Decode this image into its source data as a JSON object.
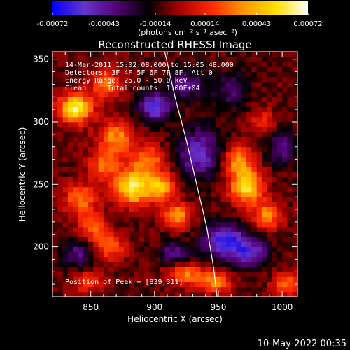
{
  "colorbar": {
    "ticks": [
      "-0.00072",
      "-0.00043",
      "-0.00014",
      "0.00014",
      "0.00043",
      "0.00072"
    ],
    "tick_values": [
      -0.00072,
      -0.00043,
      -0.00014,
      0.00014,
      0.00043,
      0.00072
    ],
    "range": [
      -0.00072,
      0.00072
    ],
    "unit_label": "(photons cm⁻² s⁻¹ asec⁻²)",
    "colors": [
      "#0000ff",
      "#6633cc",
      "#550077",
      "#000000",
      "#aa0000",
      "#ff2a00",
      "#ff9900",
      "#ffe000",
      "#ffffff"
    ]
  },
  "chart_data": {
    "type": "heatmap",
    "title": "Reconstructed RHESSI Image",
    "xlabel": "Heliocentric X (arcsec)",
    "ylabel": "Heliocentric Y (arcsec)",
    "xlim": [
      820,
      1012
    ],
    "ylim": [
      160,
      356
    ],
    "x_ticks": [
      850,
      900,
      950,
      1000
    ],
    "y_ticks": [
      200,
      250,
      300,
      350
    ],
    "annotations": [
      "14-Mar-2011 15:02:08.000 to 15:05:48.000",
      "Detectors: 3F 4F 5F 6F 7F 8F, Att 0",
      "Energy Range: 25.0 - 50.0 keV",
      "Clean     Total counts: 1.00E+04"
    ],
    "peak_label": "Position of Peak = [839,311]",
    "peak": [
      839,
      311
    ],
    "sources": [
      {
        "x": 838,
        "y": 311,
        "amp": 1.0,
        "sx": 9,
        "sy": 8
      },
      {
        "x": 862,
        "y": 330,
        "amp": 0.55,
        "sx": 8,
        "sy": 8
      },
      {
        "x": 870,
        "y": 287,
        "amp": 0.6,
        "sx": 10,
        "sy": 10
      },
      {
        "x": 860,
        "y": 265,
        "amp": 0.5,
        "sx": 8,
        "sy": 8
      },
      {
        "x": 883,
        "y": 248,
        "amp": 0.95,
        "sx": 10,
        "sy": 10
      },
      {
        "x": 905,
        "y": 248,
        "amp": 0.7,
        "sx": 8,
        "sy": 8
      },
      {
        "x": 895,
        "y": 270,
        "amp": 0.55,
        "sx": 9,
        "sy": 8
      },
      {
        "x": 918,
        "y": 225,
        "amp": 0.6,
        "sx": 8,
        "sy": 7
      },
      {
        "x": 842,
        "y": 238,
        "amp": 0.55,
        "sx": 9,
        "sy": 9
      },
      {
        "x": 852,
        "y": 215,
        "amp": 0.45,
        "sx": 8,
        "sy": 8
      },
      {
        "x": 866,
        "y": 200,
        "amp": 0.5,
        "sx": 8,
        "sy": 7
      },
      {
        "x": 925,
        "y": 178,
        "amp": 0.55,
        "sx": 10,
        "sy": 6
      },
      {
        "x": 948,
        "y": 172,
        "amp": 0.6,
        "sx": 8,
        "sy": 6
      },
      {
        "x": 972,
        "y": 249,
        "amp": 0.9,
        "sx": 9,
        "sy": 10
      },
      {
        "x": 965,
        "y": 270,
        "amp": 0.6,
        "sx": 8,
        "sy": 8
      },
      {
        "x": 988,
        "y": 225,
        "amp": 0.55,
        "sx": 8,
        "sy": 8
      },
      {
        "x": 1003,
        "y": 170,
        "amp": 0.55,
        "sx": 7,
        "sy": 6
      },
      {
        "x": 985,
        "y": 300,
        "amp": 0.35,
        "sx": 7,
        "sy": 7
      },
      {
        "x": 848,
        "y": 172,
        "amp": 0.4,
        "sx": 8,
        "sy": 6
      },
      {
        "x": 900,
        "y": 312,
        "amp": -0.7,
        "sx": 9,
        "sy": 8
      },
      {
        "x": 935,
        "y": 275,
        "amp": -0.6,
        "sx": 12,
        "sy": 14
      },
      {
        "x": 955,
        "y": 205,
        "amp": -0.75,
        "sx": 12,
        "sy": 10
      },
      {
        "x": 975,
        "y": 195,
        "amp": -0.6,
        "sx": 10,
        "sy": 8
      },
      {
        "x": 840,
        "y": 195,
        "amp": -0.4,
        "sx": 8,
        "sy": 8
      },
      {
        "x": 925,
        "y": 330,
        "amp": -0.45,
        "sx": 10,
        "sy": 8
      },
      {
        "x": 960,
        "y": 325,
        "amp": -0.35,
        "sx": 10,
        "sy": 10
      },
      {
        "x": 1000,
        "y": 280,
        "amp": -0.4,
        "sx": 8,
        "sy": 10
      },
      {
        "x": 915,
        "y": 195,
        "amp": -0.45,
        "sx": 8,
        "sy": 6
      }
    ],
    "limb_curve": {
      "x": [
        908,
        916,
        925,
        933,
        941,
        946,
        949
      ],
      "y": [
        356,
        320,
        285,
        250,
        215,
        185,
        160
      ]
    }
  },
  "timestamp": "10-May-2022 00:35"
}
